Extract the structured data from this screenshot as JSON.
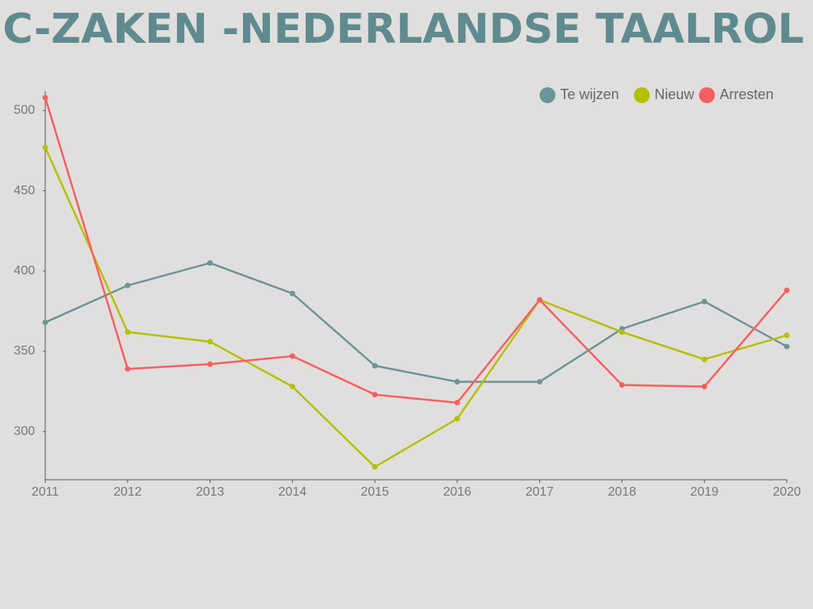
{
  "chart_data": {
    "type": "line",
    "title": "C-ZAKEN -NEDERLANDSE TAALROL",
    "x": [
      2011,
      2012,
      2013,
      2014,
      2015,
      2016,
      2017,
      2018,
      2019,
      2020
    ],
    "xlim": [
      2011,
      2020
    ],
    "xticks": [
      2011,
      2012,
      2013,
      2014,
      2015,
      2016,
      2017,
      2018,
      2019,
      2020
    ],
    "ylim": [
      270,
      512
    ],
    "yticks": [
      300,
      350,
      400,
      450,
      500
    ],
    "legend": "top-right",
    "grid": false,
    "series": [
      {
        "name": "Te wijzen",
        "color": "#6b9598",
        "values": [
          368,
          391,
          405,
          386,
          341,
          331,
          331,
          364,
          381,
          353
        ]
      },
      {
        "name": "Nieuw",
        "color": "#b5c000",
        "values": [
          477,
          362,
          356,
          328,
          278,
          308,
          382,
          362,
          345,
          360
        ]
      },
      {
        "name": "Arresten",
        "color": "#f86060",
        "values": [
          508,
          339,
          342,
          347,
          323,
          318,
          382,
          329,
          328,
          388
        ]
      }
    ]
  }
}
